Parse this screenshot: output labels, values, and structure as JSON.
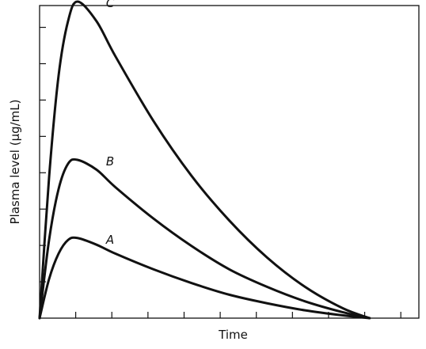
{
  "chart_data": {
    "type": "line",
    "title": "",
    "xlabel": "Time",
    "ylabel": "Plasma level (µg/mL)",
    "xlim": [
      0,
      10
    ],
    "ylim": [
      0,
      8
    ],
    "x_tick_count": 10,
    "y_tick_count": 8,
    "x_tick_labels": [],
    "y_tick_labels": [],
    "grid": false,
    "legend": "none",
    "line_color": "#111111",
    "series": [
      {
        "name": "A",
        "x": [
          0,
          0.25,
          0.5,
          0.75,
          1.0,
          1.5,
          2.0,
          3.0,
          4.0,
          5.0,
          6.0,
          7.0,
          8.0,
          8.7
        ],
        "y": [
          0,
          1.0,
          1.65,
          2.0,
          2.05,
          1.88,
          1.65,
          1.25,
          0.9,
          0.6,
          0.38,
          0.2,
          0.07,
          0
        ]
      },
      {
        "name": "B",
        "x": [
          0,
          0.25,
          0.5,
          0.75,
          1.0,
          1.5,
          2.0,
          3.0,
          4.0,
          5.0,
          6.0,
          7.0,
          8.0,
          8.7
        ],
        "y": [
          0,
          2.0,
          3.3,
          3.95,
          4.05,
          3.8,
          3.35,
          2.55,
          1.85,
          1.25,
          0.8,
          0.43,
          0.15,
          0
        ]
      },
      {
        "name": "C",
        "x": [
          0,
          0.25,
          0.5,
          0.75,
          1.0,
          1.5,
          2.0,
          3.0,
          4.0,
          5.0,
          6.0,
          7.0,
          8.0,
          8.7
        ],
        "y": [
          0,
          3.6,
          6.2,
          7.6,
          8.1,
          7.6,
          6.7,
          5.05,
          3.65,
          2.5,
          1.55,
          0.8,
          0.25,
          0
        ]
      }
    ]
  }
}
